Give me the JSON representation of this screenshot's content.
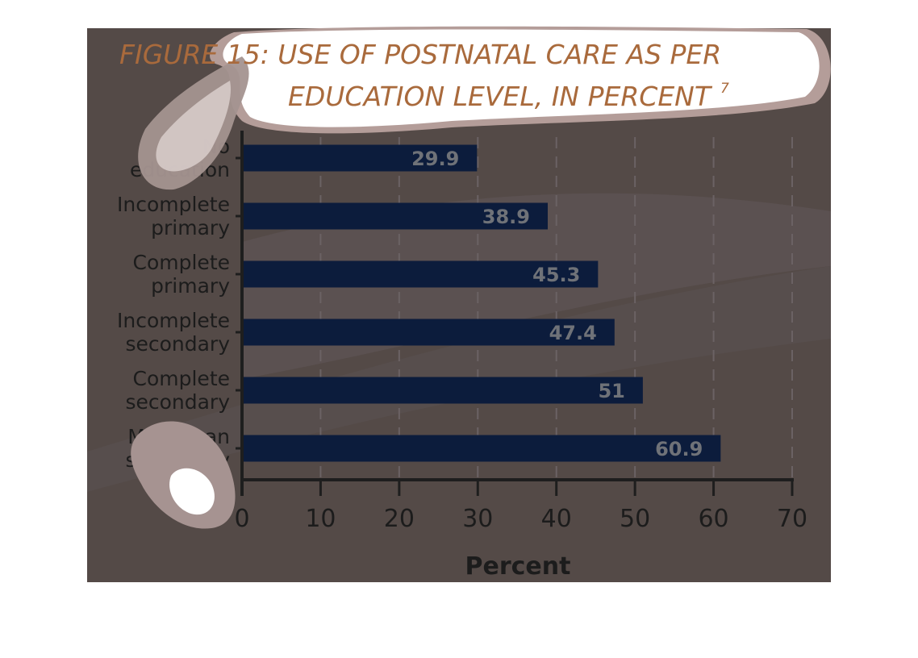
{
  "figure": {
    "title_line1": "FIGURE 15: USE OF POSTNATAL CARE AS PER",
    "title_line2": "EDUCATION LEVEL, IN PERCENT",
    "title_superscript": "7"
  },
  "colors": {
    "panel_background": "#544a47",
    "bar": "#0c1c3c",
    "title": "#a96a3c",
    "tick_text": "#1c1c1c",
    "value_label": "#6f7278",
    "axis": "#1e1e1e"
  },
  "chart_data": {
    "type": "bar",
    "orientation": "horizontal",
    "categories": [
      [
        "No",
        "education"
      ],
      [
        "Incomplete",
        "primary"
      ],
      [
        "Complete",
        "primary"
      ],
      [
        "Incomplete",
        "secondary"
      ],
      [
        "Complete",
        "secondary"
      ],
      [
        "More than",
        "secondary"
      ]
    ],
    "values": [
      29.9,
      38.9,
      45.3,
      47.4,
      51,
      60.9
    ],
    "value_labels": [
      "29.9",
      "38.9",
      "45.3",
      "47.4",
      "51",
      "60.9"
    ],
    "xlabel": "Percent",
    "ylabel": "",
    "xlim": [
      0,
      70
    ],
    "xticks": [
      0,
      10,
      20,
      30,
      40,
      50,
      60,
      70
    ],
    "grid": true
  }
}
